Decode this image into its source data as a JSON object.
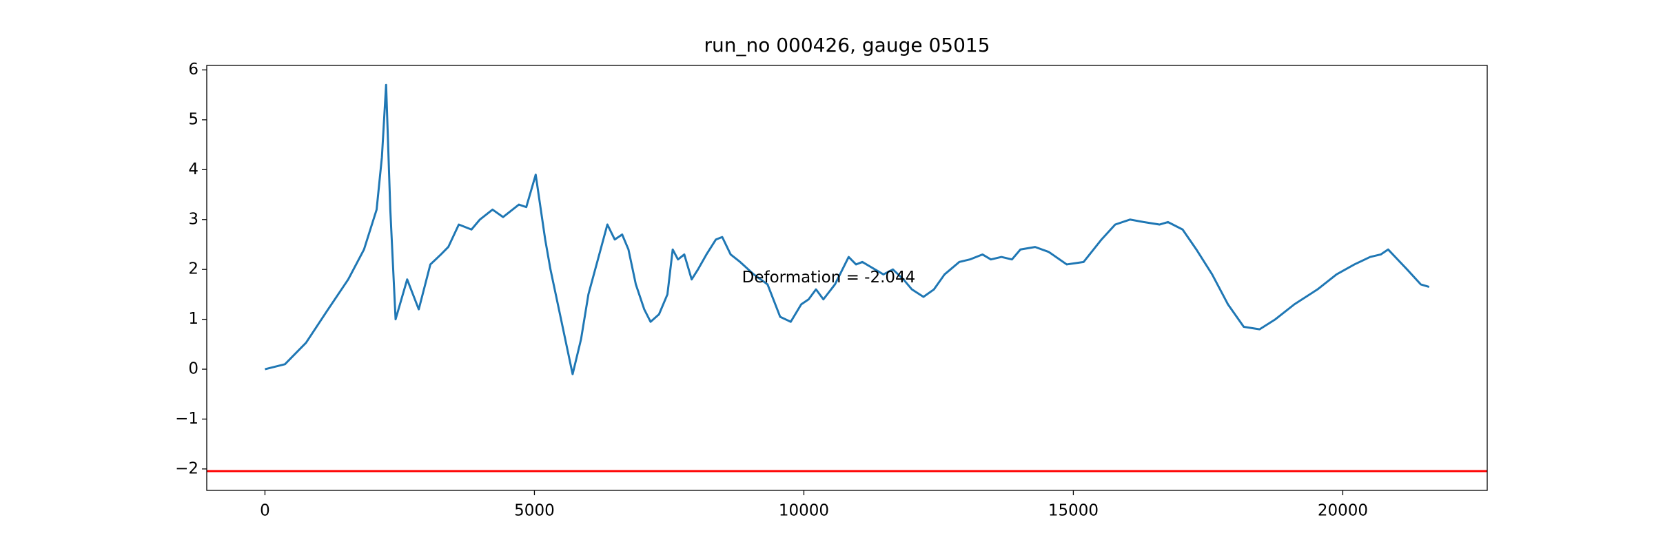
{
  "chart_data": {
    "type": "line",
    "title": "run_no 000426, gauge 05015",
    "annotation": "Deformation = -2.044",
    "x": [
      0,
      371,
      762,
      1153,
      1545,
      1838,
      2072,
      2170,
      2248,
      2326,
      2424,
      2639,
      2854,
      3069,
      3265,
      3402,
      3597,
      3832,
      3988,
      4223,
      4418,
      4712,
      4849,
      5024,
      5200,
      5298,
      5494,
      5709,
      5865,
      6002,
      6178,
      6354,
      6491,
      6628,
      6745,
      6882,
      7038,
      7155,
      7312,
      7468,
      7566,
      7664,
      7781,
      7918,
      8035,
      8192,
      8368,
      8485,
      8641,
      8817,
      9071,
      9326,
      9560,
      9756,
      9951,
      10088,
      10225,
      10362,
      10577,
      10831,
      10968,
      11085,
      11476,
      11652,
      11848,
      12004,
      12219,
      12414,
      12610,
      12884,
      13079,
      13314,
      13470,
      13666,
      13861,
      14018,
      14291,
      14545,
      14878,
      15191,
      15523,
      15777,
      16051,
      16305,
      16598,
      16755,
      17028,
      17283,
      17576,
      17869,
      18162,
      18456,
      18749,
      19101,
      19531,
      19883,
      20215,
      20508,
      20704,
      20841,
      21193,
      21447,
      21603
    ],
    "series": [
      {
        "color": "#1f77b4",
        "values": [
          0,
          0.1,
          0.53,
          1.17,
          1.8,
          2.4,
          3.2,
          4.25,
          5.7,
          3.2,
          1.0,
          1.8,
          1.2,
          2.1,
          2.3,
          2.45,
          2.9,
          2.8,
          3.0,
          3.2,
          3.05,
          3.3,
          3.25,
          3.9,
          2.6,
          2.0,
          1.0,
          -0.1,
          0.6,
          1.5,
          2.2,
          2.9,
          2.6,
          2.7,
          2.4,
          1.7,
          1.2,
          0.95,
          1.1,
          1.5,
          2.4,
          2.2,
          2.3,
          1.8,
          2.0,
          2.3,
          2.6,
          2.65,
          2.3,
          2.15,
          1.9,
          1.7,
          1.05,
          0.95,
          1.3,
          1.4,
          1.6,
          1.4,
          1.7,
          2.25,
          2.1,
          2.15,
          1.9,
          2.0,
          1.8,
          1.6,
          1.45,
          1.6,
          1.9,
          2.15,
          2.2,
          2.3,
          2.2,
          2.25,
          2.2,
          2.4,
          2.45,
          2.35,
          2.1,
          2.15,
          2.6,
          2.9,
          3.0,
          2.95,
          2.9,
          2.95,
          2.8,
          2.4,
          1.9,
          1.3,
          0.85,
          0.8,
          1.0,
          1.3,
          1.6,
          1.9,
          2.1,
          2.25,
          2.3,
          2.4,
          2.0,
          1.7,
          1.65
        ]
      }
    ],
    "hlines": [
      {
        "value": -2.044,
        "color": "#ff0000"
      }
    ],
    "xlim": [
      -1080,
      22680
    ],
    "ylim": [
      -2.43,
      6.09
    ],
    "xticks": [
      0,
      5000,
      10000,
      15000,
      20000
    ],
    "yticks": [
      {
        "value": -2,
        "label": "−2"
      },
      {
        "value": -1,
        "label": "−1"
      },
      0,
      1,
      2,
      3,
      4,
      5,
      6
    ],
    "grid": false
  }
}
